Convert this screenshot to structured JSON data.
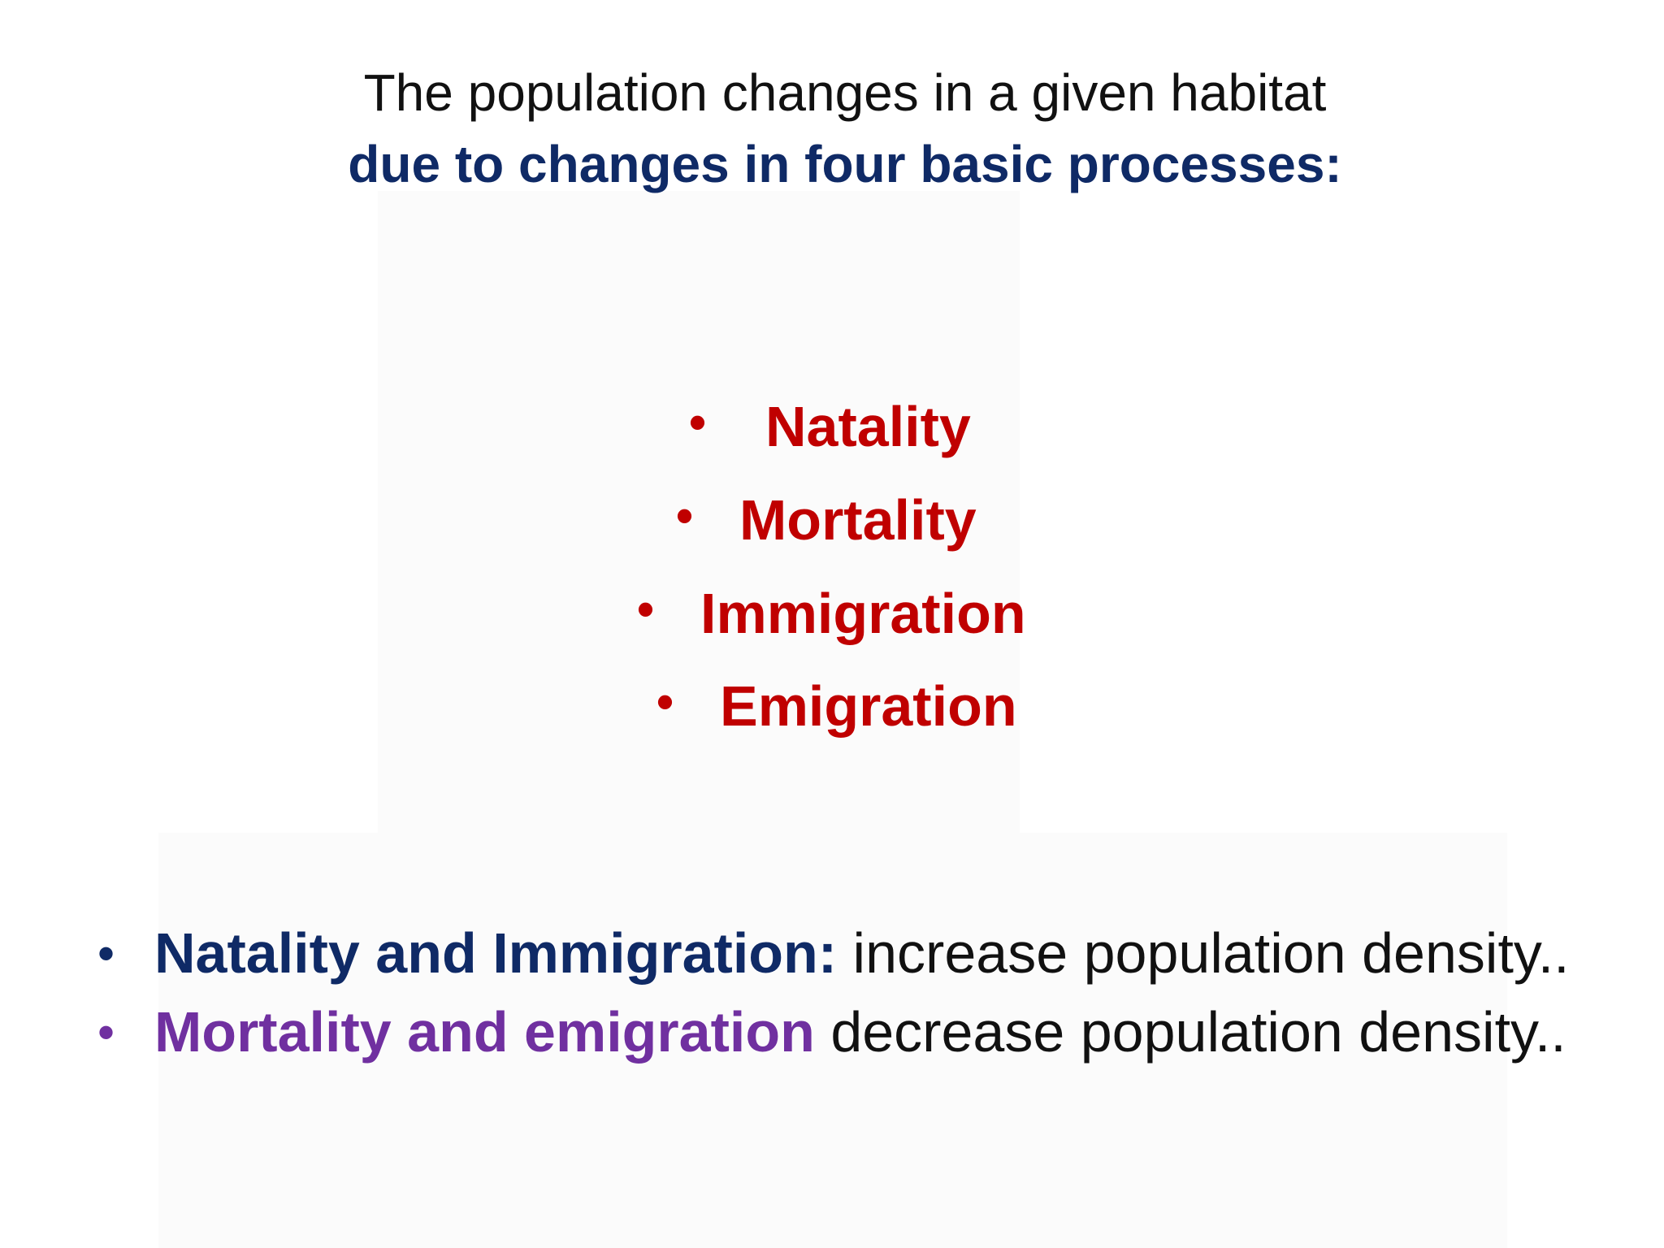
{
  "heading": {
    "line1": "The population changes in a given habitat",
    "line2": "due to changes in four basic processes:"
  },
  "processes": {
    "bullet": "•",
    "items": [
      "Natality",
      "Mortality",
      "Immigration",
      "Emigration"
    ]
  },
  "summary": {
    "bullet": "•",
    "rows": [
      {
        "lead": "Natality and Immigration:",
        "rest": " increase population density.."
      },
      {
        "lead": "Mortality and emigration",
        "rest": " decrease population density.."
      }
    ]
  },
  "colors": {
    "navy": "#0f2a66",
    "red": "#c00000",
    "purple": "#7030a0",
    "text": "#111111"
  }
}
